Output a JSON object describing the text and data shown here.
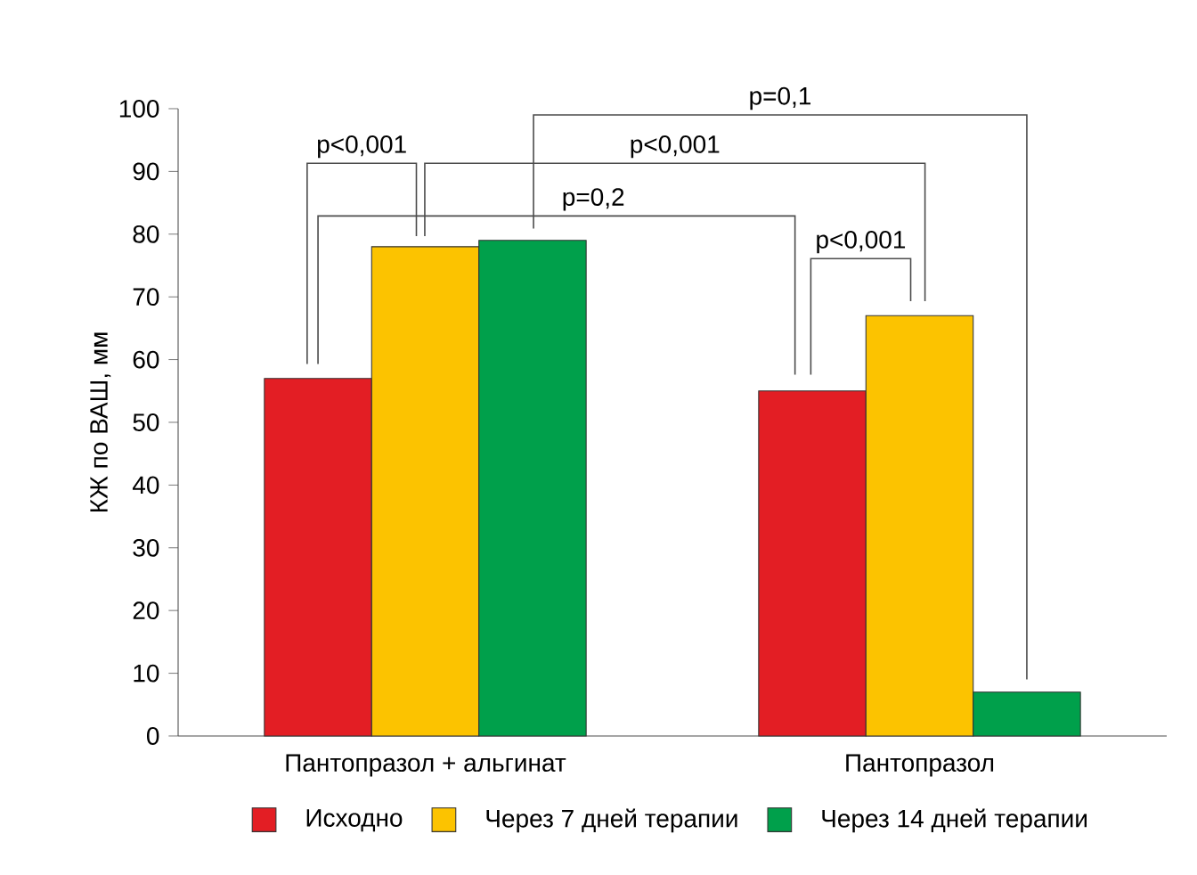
{
  "chart_data": {
    "type": "bar",
    "ylabel": "КЖ по ВАШ, мм",
    "categories": [
      "Пантопразол + альгинат",
      "Пантопразол"
    ],
    "series": [
      {
        "name": "Исходно",
        "color": "#e31e24",
        "values": [
          57,
          55
        ]
      },
      {
        "name": "Через 7 дней терапии",
        "color": "#fcc300",
        "values": [
          78,
          67
        ]
      },
      {
        "name": "Через 14 дней терапии",
        "color": "#00a04b",
        "values": [
          79,
          7
        ]
      }
    ],
    "ylim": [
      0,
      100
    ],
    "yticks": [
      0,
      10,
      20,
      30,
      40,
      50,
      60,
      70,
      80,
      90,
      100
    ],
    "legend": "bottom",
    "grid": false,
    "annotations": [
      "p<0,001",
      "p=0,2",
      "p<0,001",
      "p=0,1",
      "p<0,001"
    ]
  }
}
